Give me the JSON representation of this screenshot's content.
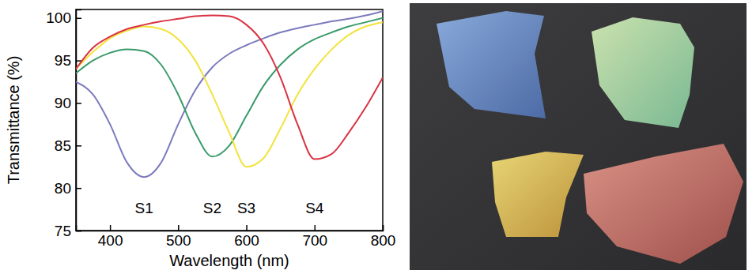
{
  "chart_data": {
    "type": "line",
    "x_label": "Wavelength (nm)",
    "y_label": "Transmittance (%)",
    "x": [
      350,
      375,
      400,
      425,
      450,
      475,
      500,
      525,
      550,
      575,
      600,
      625,
      650,
      675,
      700,
      725,
      750,
      775,
      800
    ],
    "xlim": [
      350,
      800
    ],
    "xticks": [
      400,
      500,
      600,
      700,
      800
    ],
    "ylim": [
      75,
      101
    ],
    "yticks": [
      75,
      80,
      85,
      90,
      95,
      100
    ],
    "grid": false,
    "series": [
      {
        "name": "S1",
        "color": "#7b7bbd",
        "values": [
          92.5,
          91,
          87.5,
          83,
          81.3,
          83,
          87.5,
          91.5,
          94.2,
          95.8,
          96.8,
          97.6,
          98.3,
          98.8,
          99.2,
          99.6,
          99.9,
          100.3,
          100.8
        ]
      },
      {
        "name": "S2",
        "color": "#3a9a6a",
        "values": [
          93.5,
          95,
          95.9,
          96.3,
          96.1,
          94.5,
          91,
          86.5,
          83.7,
          85,
          88.5,
          92,
          94.5,
          96.3,
          97.5,
          98.3,
          99,
          99.5,
          100
        ]
      },
      {
        "name": "S3",
        "color": "#f2e33c",
        "values": [
          94,
          96,
          97.6,
          98.5,
          99,
          98.7,
          97.5,
          95,
          91,
          86.5,
          82.5,
          83.5,
          87,
          91,
          94,
          96.3,
          98,
          99,
          99.5
        ]
      },
      {
        "name": "S4",
        "color": "#d93343",
        "values": [
          94,
          96.5,
          97.8,
          98.7,
          99.2,
          99.6,
          99.9,
          100.2,
          100.3,
          100.2,
          99.2,
          97,
          93,
          87.5,
          83.4,
          84,
          86.5,
          89.5,
          93
        ]
      }
    ]
  }
}
